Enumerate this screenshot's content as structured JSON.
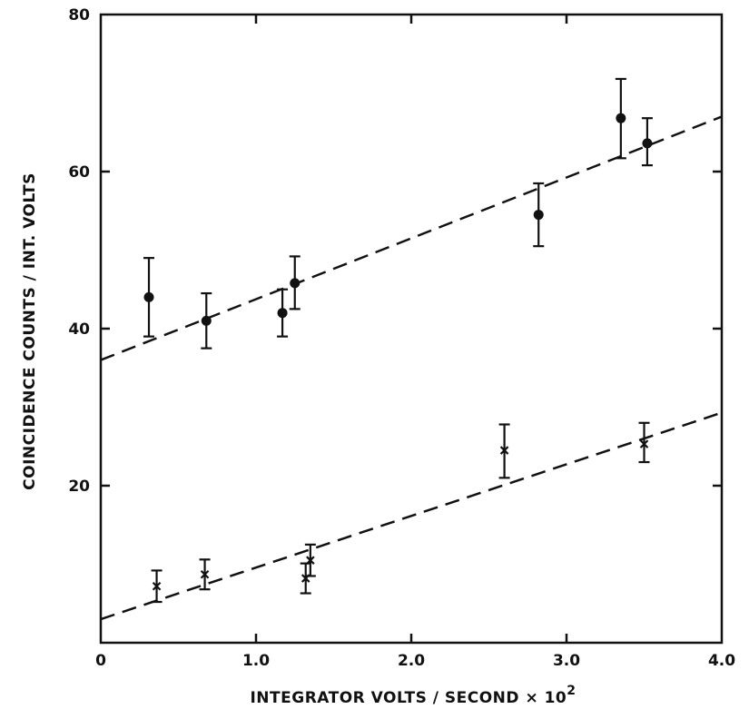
{
  "chart_data": {
    "type": "scatter",
    "title": "",
    "xlabel": "INTEGRATOR VOLTS / SECOND × 10",
    "xlabel_exponent": "2",
    "ylabel": "COINCIDENCE COUNTS / INT. VOLTS",
    "xlim": [
      0,
      4.0
    ],
    "ylim": [
      0,
      80
    ],
    "x_ticks": [
      "0",
      "1.0",
      "2.0",
      "3.0",
      "4.0"
    ],
    "y_ticks": [
      "20",
      "40",
      "60",
      "80"
    ],
    "grid": false,
    "series": [
      {
        "marker": "circle",
        "points": [
          {
            "x": 0.31,
            "y": 44.0,
            "err_low": 39.0,
            "err_high": 49.0
          },
          {
            "x": 0.68,
            "y": 41.0,
            "err_low": 37.5,
            "err_high": 44.5
          },
          {
            "x": 1.17,
            "y": 42.0,
            "err_low": 39.0,
            "err_high": 45.0
          },
          {
            "x": 1.25,
            "y": 45.8,
            "err_low": 42.5,
            "err_high": 49.2
          },
          {
            "x": 2.82,
            "y": 54.5,
            "err_low": 50.5,
            "err_high": 58.5
          },
          {
            "x": 3.35,
            "y": 66.8,
            "err_low": 61.7,
            "err_high": 71.8
          },
          {
            "x": 3.52,
            "y": 63.6,
            "err_low": 60.8,
            "err_high": 66.8
          }
        ],
        "fit_line": {
          "x": [
            0,
            4.0
          ],
          "y": [
            36.0,
            67.0
          ]
        }
      },
      {
        "marker": "x",
        "points": [
          {
            "x": 0.36,
            "y": 7.2,
            "err_low": 5.2,
            "err_high": 9.2
          },
          {
            "x": 0.67,
            "y": 8.7,
            "err_low": 6.8,
            "err_high": 10.6
          },
          {
            "x": 1.32,
            "y": 8.2,
            "err_low": 6.3,
            "err_high": 10.1
          },
          {
            "x": 1.35,
            "y": 10.5,
            "err_low": 8.5,
            "err_high": 12.5
          },
          {
            "x": 2.6,
            "y": 24.5,
            "err_low": 21.0,
            "err_high": 27.8
          },
          {
            "x": 3.5,
            "y": 25.3,
            "err_low": 23.0,
            "err_high": 28.0
          }
        ],
        "fit_line": {
          "x": [
            0,
            4.0
          ],
          "y": [
            3.0,
            29.3
          ]
        }
      }
    ]
  }
}
